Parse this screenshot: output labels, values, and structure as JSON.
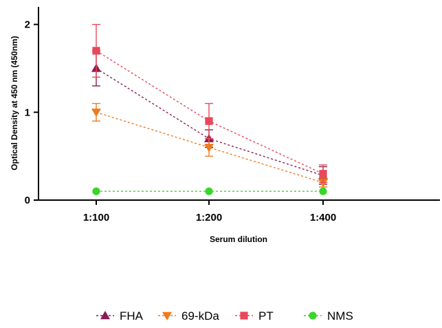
{
  "chart_data": {
    "type": "line",
    "title": "",
    "xlabel": "Serum dilution",
    "ylabel": "Optical Density at 450 nm (450nm)",
    "categories": [
      "1:100",
      "1:200",
      "1:400"
    ],
    "ylim": [
      0,
      2.2
    ],
    "yticks": [
      0,
      1,
      2
    ],
    "grid": false,
    "legend_placement": "bottom",
    "series": [
      {
        "name": "FHA",
        "color": "#8b1a55",
        "marker": "triangle-up",
        "values": [
          1.5,
          0.7,
          0.28
        ],
        "err": [
          0.2,
          0.1,
          0.1
        ]
      },
      {
        "name": "69-kDa",
        "color": "#f07a1e",
        "marker": "triangle-down",
        "values": [
          1.0,
          0.6,
          0.2
        ],
        "err": [
          0.1,
          0.1,
          0.05
        ]
      },
      {
        "name": "PT",
        "color": "#e8485a",
        "marker": "square",
        "values": [
          1.7,
          0.9,
          0.3
        ],
        "err": [
          0.3,
          0.2,
          0.1
        ]
      },
      {
        "name": "NMS",
        "color": "#39d62a",
        "marker": "circle",
        "values": [
          0.1,
          0.1,
          0.1
        ],
        "err": [
          0,
          0,
          0
        ]
      }
    ]
  }
}
